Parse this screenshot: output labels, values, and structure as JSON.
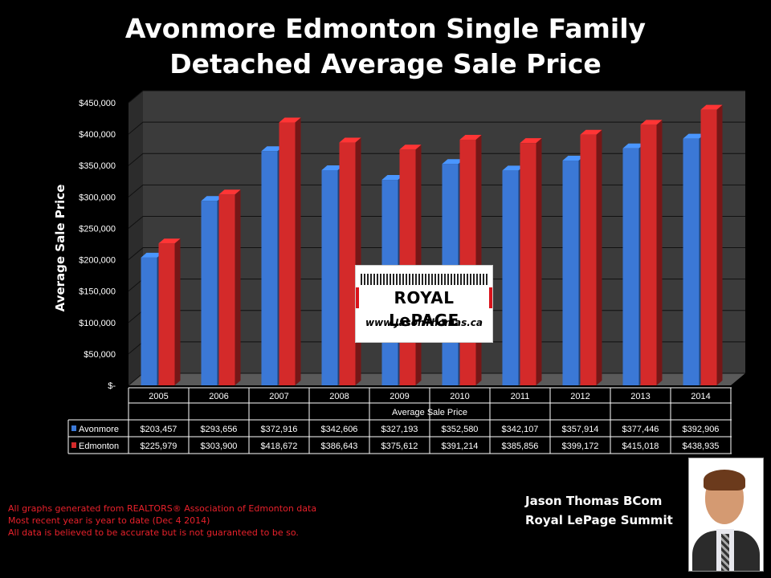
{
  "title_line1": "Avonmore Edmonton Single Family",
  "title_line2": "Detached Average Sale Price",
  "logo": {
    "brand": "ROYAL LePAGE",
    "url": "www.JasonThomas.ca"
  },
  "footnotes": [
    "All graphs generated from REALTORS® Association of Edmonton data",
    "Most recent year is year to date (Dec 4 2014)",
    "All data is believed to be accurate but is not guaranteed to be so."
  ],
  "author": {
    "name": "Jason Thomas BCom",
    "company": "Royal LePage Summit"
  },
  "chart_data": {
    "type": "bar",
    "title": "",
    "xlabel": "Average Sale Price",
    "ylabel": "Average Sale Price",
    "ylim": [
      0,
      450000
    ],
    "yticks": [
      0,
      50000,
      100000,
      150000,
      200000,
      250000,
      300000,
      350000,
      400000,
      450000
    ],
    "ytick_labels": [
      "$-",
      "$50,000",
      "$100,000",
      "$150,000",
      "$200,000",
      "$250,000",
      "$300,000",
      "$350,000",
      "$400,000",
      "$450,000"
    ],
    "grid": true,
    "categories": [
      "2005",
      "2006",
      "2007",
      "2008",
      "2009",
      "2010",
      "2011",
      "2012",
      "2013",
      "2014"
    ],
    "series": [
      {
        "name": "Avonmore",
        "color": "#3b78d6",
        "values": [
          203457,
          293656,
          372916,
          342606,
          327193,
          352580,
          342107,
          357914,
          377446,
          392906
        ],
        "labels": [
          "$203,457",
          "$293,656",
          "$372,916",
          "$342,606",
          "$327,193",
          "$352,580",
          "$342,107",
          "$357,914",
          "$377,446",
          "$392,906"
        ]
      },
      {
        "name": "Edmonton",
        "color": "#d42a2a",
        "values": [
          225979,
          303900,
          418672,
          386643,
          375612,
          391214,
          385856,
          399172,
          415018,
          438935
        ],
        "labels": [
          "$225,979",
          "$303,900",
          "$418,672",
          "$386,643",
          "$375,612",
          "$391,214",
          "$385,856",
          "$399,172",
          "$415,018",
          "$438,935"
        ]
      }
    ]
  }
}
